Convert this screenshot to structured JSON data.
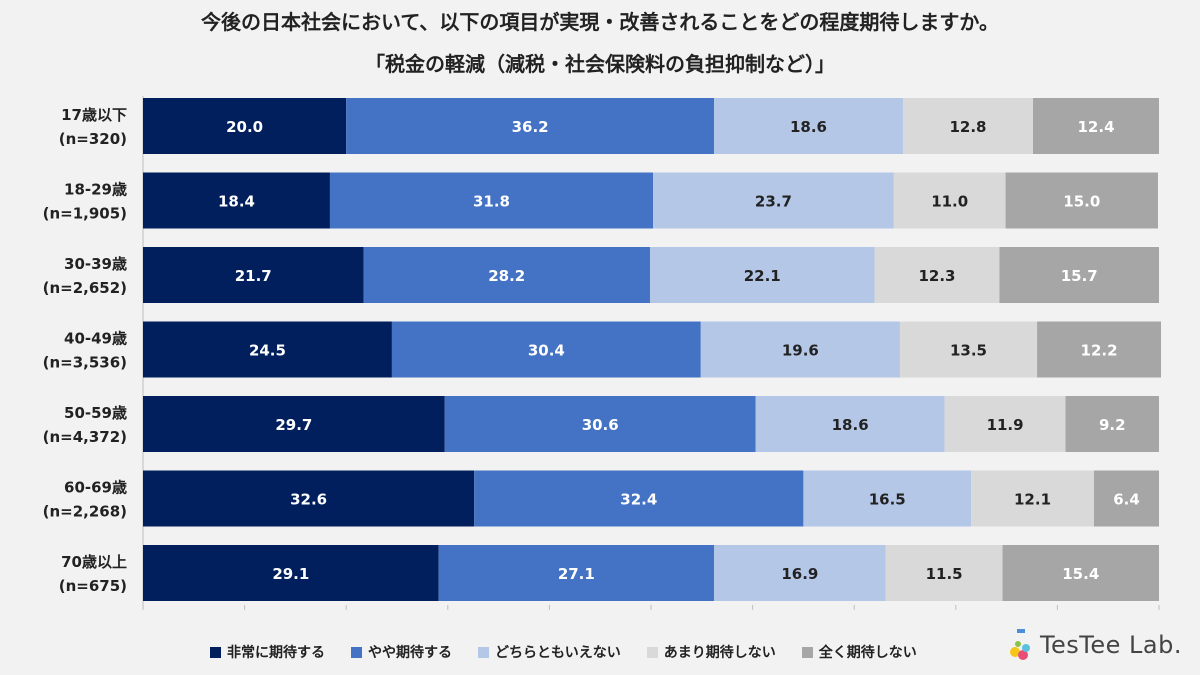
{
  "chart_data": {
    "type": "bar",
    "orientation": "horizontal",
    "stacked": true,
    "title": "今後の日本社会において、以下の項目が実現・改善されることをどの程度期待しますか。",
    "subtitle": "「税金の軽減（減税・社会保険料の負担抑制など）」",
    "categories": [
      {
        "label": "17歳以下",
        "n": "(n=320)"
      },
      {
        "label": "18-29歳",
        "n": "(n=1,905)"
      },
      {
        "label": "30-39歳",
        "n": "(n=2,652)"
      },
      {
        "label": "40-49歳",
        "n": "(n=3,536)"
      },
      {
        "label": "50-59歳",
        "n": "(n=4,372)"
      },
      {
        "label": "60-69歳",
        "n": "(n=2,268)"
      },
      {
        "label": "70歳以上",
        "n": "(n=675)"
      }
    ],
    "series": [
      {
        "name": "非常に期待する",
        "color": "#001f5c",
        "text_color": "#ffffff",
        "values": [
          20.0,
          18.4,
          21.7,
          24.5,
          29.7,
          32.6,
          29.1
        ]
      },
      {
        "name": "やや期待する",
        "color": "#4472c4",
        "text_color": "#ffffff",
        "values": [
          36.2,
          31.8,
          28.2,
          30.4,
          30.6,
          32.4,
          27.1
        ]
      },
      {
        "name": "どちらともいえない",
        "color": "#b4c7e7",
        "text_color": "#222222",
        "values": [
          18.6,
          23.7,
          22.1,
          19.6,
          18.6,
          16.5,
          16.9
        ]
      },
      {
        "name": "あまり期待しない",
        "color": "#d9d9d9",
        "text_color": "#222222",
        "values": [
          12.8,
          11.0,
          12.3,
          13.5,
          11.9,
          12.1,
          11.5
        ]
      },
      {
        "name": "全く期待しない",
        "color": "#a6a6a6",
        "text_color": "#ffffff",
        "values": [
          12.4,
          15.0,
          15.7,
          12.2,
          9.2,
          6.4,
          15.4
        ]
      }
    ],
    "xlim": [
      0,
      100
    ],
    "legend_position": "bottom"
  },
  "logo": {
    "text": "TesTee Lab."
  }
}
